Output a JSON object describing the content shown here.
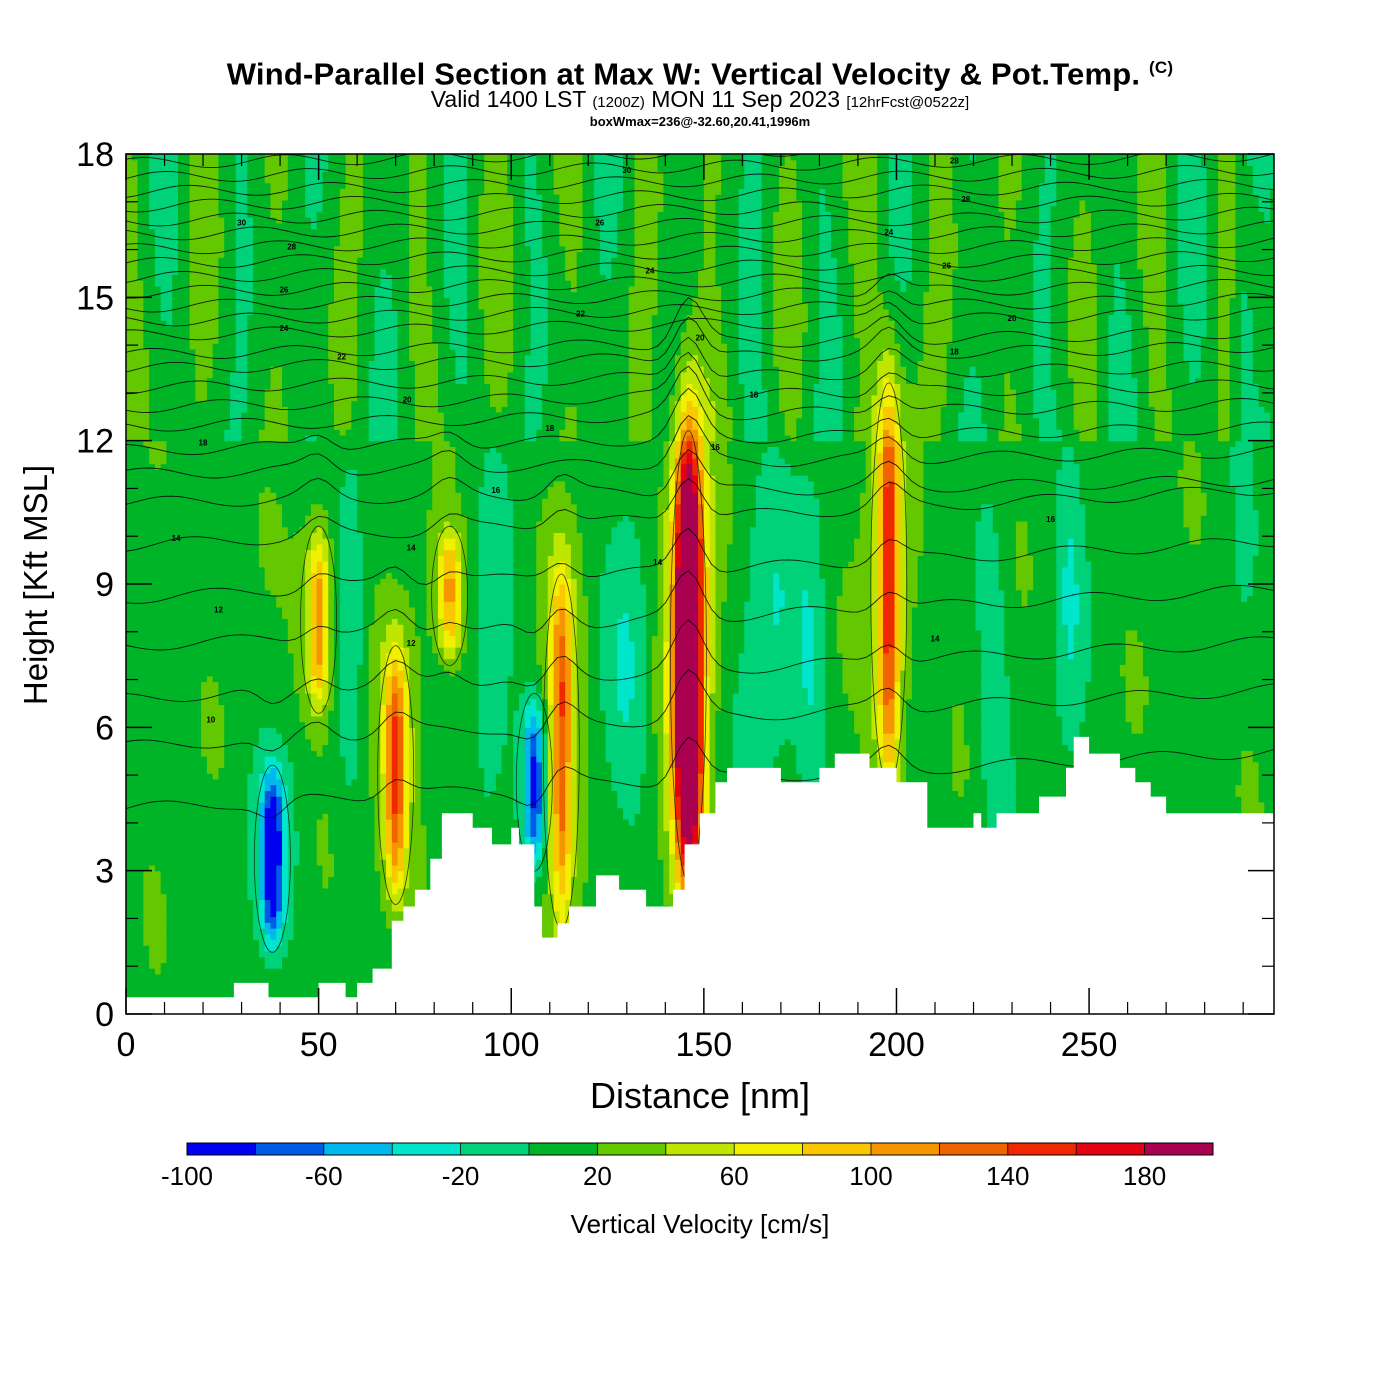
{
  "header": {
    "title": "Wind-Parallel Section at Max W: Vertical Velocity & Pot.Temp.",
    "copyright_mark": "(C)",
    "valid_prefix": "Valid 1400 LST",
    "valid_utc": "(1200Z)",
    "valid_date": "MON 11 Sep 2023",
    "forecast": "[12hrFcst@0522z]",
    "box_wmax": "boxWmax=236@-32.60,20.41,1996m"
  },
  "chart_data": {
    "type": "heatmap",
    "xlabel": "Distance [nm]",
    "ylabel": "Height [Kft MSL]",
    "xlim": [
      0,
      298
    ],
    "ylim": [
      0,
      18
    ],
    "x_ticks": [
      0,
      50,
      100,
      150,
      200,
      250
    ],
    "y_ticks": [
      0,
      3,
      6,
      9,
      12,
      15,
      18
    ],
    "colorbar": {
      "label": "Vertical Velocity [cm/s]",
      "levels": [
        -100,
        -80,
        -60,
        -40,
        -20,
        0,
        20,
        40,
        60,
        80,
        100,
        120,
        140,
        160,
        180,
        200
      ],
      "tick_labels": [
        -100,
        -60,
        -20,
        20,
        60,
        100,
        140,
        180
      ],
      "colors": [
        "#0000f0",
        "#005ae6",
        "#00b8ee",
        "#00e6cc",
        "#00d27a",
        "#00b428",
        "#64c800",
        "#bee600",
        "#f0f000",
        "#fac800",
        "#f59600",
        "#f06400",
        "#f02800",
        "#e60014",
        "#aa0050"
      ]
    },
    "updrafts": [
      {
        "x": 38,
        "z_bottom": 1.5,
        "z_top": 5.0,
        "w": -90
      },
      {
        "x": 50,
        "z_bottom": 6.5,
        "z_top": 10.0,
        "w": 80
      },
      {
        "x": 70,
        "z_bottom": 2.5,
        "z_top": 7.5,
        "w": 100
      },
      {
        "x": 84,
        "z_bottom": 7.5,
        "z_top": 10.0,
        "w": 70
      },
      {
        "x": 106,
        "z_bottom": 3.2,
        "z_top": 6.5,
        "w": -75
      },
      {
        "x": 113,
        "z_bottom": 2.0,
        "z_top": 9.0,
        "w": 100
      },
      {
        "x": 146,
        "z_bottom": 3.0,
        "z_top": 12.0,
        "w": 236
      },
      {
        "x": 198,
        "z_bottom": 5.0,
        "z_top": 13.0,
        "w": 110
      }
    ],
    "terrain": {
      "x": [
        0,
        28,
        28,
        37,
        37,
        50,
        50,
        57,
        57,
        60,
        60,
        64,
        64,
        69,
        69,
        72,
        72,
        75,
        75,
        79,
        79,
        82,
        82,
        90,
        90,
        95,
        95,
        100,
        100,
        102,
        102,
        106,
        106,
        108,
        108,
        112,
        112,
        115,
        115,
        122,
        122,
        128,
        128,
        135,
        135,
        142,
        142,
        145,
        145,
        149,
        149,
        153,
        153,
        156,
        156,
        170,
        170,
        180,
        180,
        184,
        184,
        193,
        193,
        200,
        200,
        208,
        208,
        220,
        220,
        222,
        222,
        226,
        226,
        237,
        237,
        244,
        244,
        246,
        246,
        250,
        250,
        258,
        258,
        262,
        262,
        266,
        266,
        270,
        270,
        278,
        278,
        298
      ],
      "z": [
        0.35,
        0.35,
        0.65,
        0.65,
        0.35,
        0.35,
        0.65,
        0.65,
        0.35,
        0.35,
        0.65,
        0.65,
        0.95,
        0.95,
        1.95,
        1.95,
        2.25,
        2.25,
        2.6,
        2.6,
        3.25,
        3.25,
        4.2,
        4.2,
        3.9,
        3.9,
        3.55,
        3.55,
        3.9,
        3.9,
        3.55,
        3.55,
        2.25,
        2.25,
        1.6,
        1.6,
        1.9,
        1.9,
        2.25,
        2.25,
        2.9,
        2.9,
        2.6,
        2.6,
        2.25,
        2.25,
        2.6,
        2.6,
        3.55,
        3.55,
        4.2,
        4.2,
        4.85,
        4.85,
        5.15,
        5.15,
        4.85,
        4.85,
        5.15,
        5.15,
        5.45,
        5.45,
        5.15,
        5.15,
        4.85,
        4.85,
        3.9,
        3.9,
        4.2,
        4.2,
        3.9,
        3.9,
        4.2,
        4.2,
        4.55,
        4.55,
        5.15,
        5.15,
        5.8,
        5.8,
        5.45,
        5.45,
        5.15,
        5.15,
        4.85,
        4.85,
        4.55,
        4.55,
        4.2,
        4.2,
        4.2,
        4.2
      ]
    },
    "pot_temp_labels": [
      {
        "x": 20,
        "z": 11.9,
        "text": "18"
      },
      {
        "x": 13,
        "z": 9.9,
        "text": "14"
      },
      {
        "x": 24,
        "z": 8.4,
        "text": "12"
      },
      {
        "x": 22,
        "z": 6.1,
        "text": "10"
      },
      {
        "x": 30,
        "z": 16.5,
        "text": "30"
      },
      {
        "x": 43,
        "z": 16.0,
        "text": "28"
      },
      {
        "x": 41,
        "z": 15.1,
        "text": "26"
      },
      {
        "x": 41,
        "z": 14.3,
        "text": "24"
      },
      {
        "x": 56,
        "z": 13.7,
        "text": "22"
      },
      {
        "x": 73,
        "z": 12.8,
        "text": "20"
      },
      {
        "x": 96,
        "z": 10.9,
        "text": "16"
      },
      {
        "x": 74,
        "z": 9.7,
        "text": "14"
      },
      {
        "x": 74,
        "z": 7.7,
        "text": "12"
      },
      {
        "x": 110,
        "z": 12.2,
        "text": "18"
      },
      {
        "x": 118,
        "z": 14.6,
        "text": "22"
      },
      {
        "x": 123,
        "z": 16.5,
        "text": "26"
      },
      {
        "x": 130,
        "z": 17.6,
        "text": "30"
      },
      {
        "x": 136,
        "z": 15.5,
        "text": "24"
      },
      {
        "x": 149,
        "z": 14.1,
        "text": "20"
      },
      {
        "x": 163,
        "z": 12.9,
        "text": "18"
      },
      {
        "x": 153,
        "z": 11.8,
        "text": "16"
      },
      {
        "x": 138,
        "z": 9.4,
        "text": "14"
      },
      {
        "x": 198,
        "z": 16.3,
        "text": "24"
      },
      {
        "x": 215,
        "z": 17.8,
        "text": "28"
      },
      {
        "x": 218,
        "z": 17.0,
        "text": "28"
      },
      {
        "x": 213,
        "z": 15.6,
        "text": "26"
      },
      {
        "x": 230,
        "z": 14.5,
        "text": "20"
      },
      {
        "x": 215,
        "z": 13.8,
        "text": "18"
      },
      {
        "x": 240,
        "z": 10.3,
        "text": "16"
      },
      {
        "x": 210,
        "z": 7.8,
        "text": "14"
      }
    ]
  }
}
